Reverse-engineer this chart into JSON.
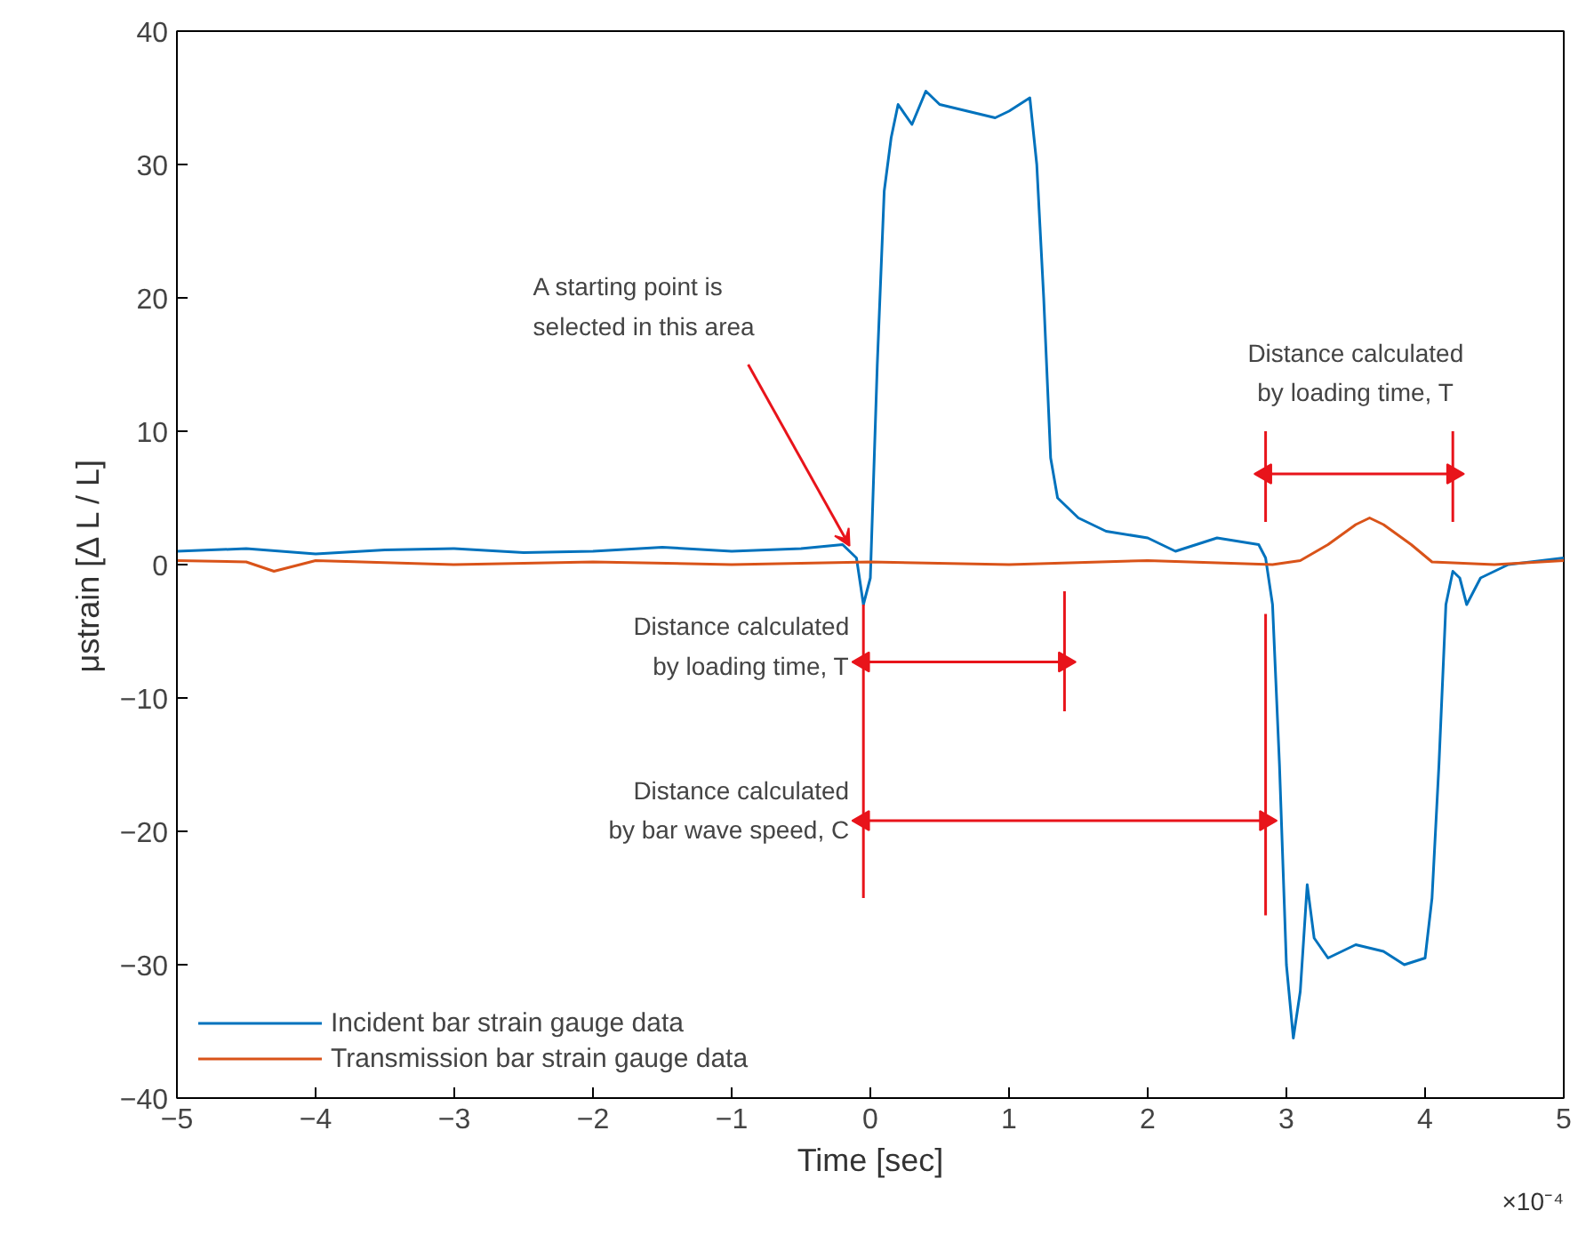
{
  "chart_data": {
    "type": "line",
    "xlabel": "Time [sec]",
    "ylabel": "μstrain [Δ L / L]",
    "xlim": [
      -5,
      5
    ],
    "ylim": [
      -40,
      40
    ],
    "xticks": [
      -5,
      -4,
      -3,
      -2,
      -1,
      0,
      1,
      2,
      3,
      4,
      5
    ],
    "yticks": [
      -40,
      -30,
      -20,
      -10,
      0,
      10,
      20,
      30,
      40
    ],
    "grid": false,
    "legend": "bottom left",
    "line_style": "solid",
    "marker": "none",
    "series": [
      {
        "name": "Incident bar strain gauge data",
        "color": "#0072bd",
        "x": [
          -5,
          -4.5,
          -4,
          -3.5,
          -3,
          -2.5,
          -2,
          -1.5,
          -1,
          -0.5,
          -0.2,
          -0.1,
          -0.05,
          0,
          0.05,
          0.1,
          0.15,
          0.2,
          0.3,
          0.4,
          0.5,
          0.7,
          0.9,
          1.0,
          1.15,
          1.2,
          1.25,
          1.3,
          1.35,
          1.5,
          1.7,
          2.0,
          2.2,
          2.5,
          2.8,
          2.85,
          2.9,
          2.95,
          3.0,
          3.05,
          3.1,
          3.15,
          3.2,
          3.3,
          3.5,
          3.7,
          3.85,
          4.0,
          4.05,
          4.1,
          4.15,
          4.2,
          4.25,
          4.3,
          4.4,
          4.6,
          5.0
        ],
        "values": [
          1.0,
          1.2,
          0.8,
          1.1,
          1.2,
          0.9,
          1.0,
          1.3,
          1.0,
          1.2,
          1.5,
          0.5,
          -3.0,
          -1,
          15,
          28,
          32,
          34.5,
          33,
          35.5,
          34.5,
          34,
          33.5,
          34,
          35,
          30,
          20,
          8,
          5,
          3.5,
          2.5,
          2,
          1.0,
          2,
          1.5,
          0.5,
          -3,
          -15,
          -30,
          -35.5,
          -32,
          -24,
          -28,
          -29.5,
          -28.5,
          -29,
          -30,
          -29.5,
          -25,
          -15,
          -3,
          -0.5,
          -1,
          -3,
          -1,
          0,
          0.5
        ]
      },
      {
        "name": "Transmission bar strain gauge data",
        "color": "#d95319",
        "x": [
          -5,
          -4.5,
          -4.3,
          -4,
          -3,
          -2,
          -1,
          0,
          1,
          2,
          2.9,
          3.1,
          3.3,
          3.5,
          3.6,
          3.7,
          3.9,
          4.05,
          4.5,
          5
        ],
        "values": [
          0.3,
          0.2,
          -0.5,
          0.3,
          0,
          0.2,
          0,
          0.2,
          0,
          0.3,
          0,
          0.3,
          1.5,
          3,
          3.5,
          3,
          1.5,
          0.2,
          0,
          0.3
        ]
      },
      {
        "type": "line",
        "color": "#e8141b",
        "x": [
          -0.05,
          -0.05
        ],
        "values": [
          -3,
          -25
        ]
      },
      {
        "type": "line",
        "color": "#e8141b",
        "x": [
          1.4,
          1.4
        ],
        "values": [
          -2,
          -11
        ]
      },
      {
        "type": "line",
        "color": "#e8141b",
        "x": [
          2.85,
          2.85
        ],
        "values": [
          -3.7,
          -26.3
        ]
      },
      {
        "type": "line",
        "color": "#e8141b",
        "x": [
          2.85,
          2.85
        ],
        "values": [
          3.2,
          10
        ]
      },
      {
        "type": "line",
        "color": "#e8141b",
        "x": [
          4.2,
          4.2
        ],
        "values": [
          3.2,
          10
        ]
      },
      {
        "type": "line",
        "color": "#e8141b",
        "marker": "triangle",
        "x": [
          -0.05,
          1.4
        ],
        "values": [
          -7.3,
          -7.3
        ]
      },
      {
        "type": "line",
        "color": "#e8141b",
        "marker": "triangle",
        "x": [
          -0.05,
          2.85
        ],
        "values": [
          -19.2,
          -19.2
        ]
      },
      {
        "type": "line",
        "color": "#e8141b",
        "marker": "triangle",
        "x": [
          2.85,
          4.2
        ],
        "values": [
          6.8,
          6.8
        ]
      }
    ],
    "annotations": [
      {
        "text": "A starting point is\nselected in this area",
        "x": -0.15,
        "y": 1.4
      },
      {
        "text": "Distance calculated\nby loading time, T",
        "x": -0.05,
        "y": -7.3
      },
      {
        "text": "Distance calculated\nby bar wave speed, C",
        "x": -0.05,
        "y": -19.2
      },
      {
        "text": "Distance calculated\nby loading time, T",
        "x": 3.55,
        "y": 6.8
      },
      "×10⁻⁴"
    ]
  }
}
